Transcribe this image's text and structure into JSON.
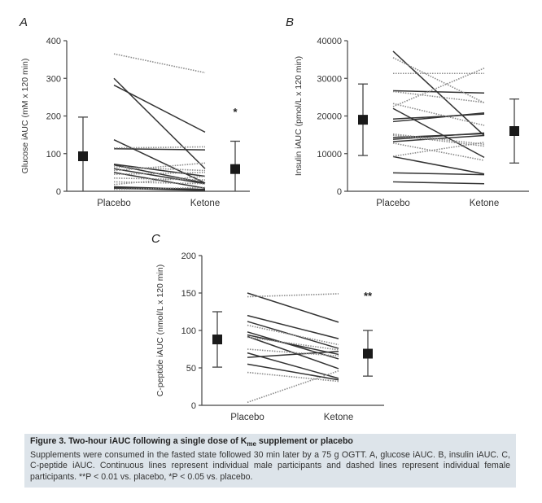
{
  "chart_data": [
    {
      "type": "line",
      "panel": "A",
      "ylabel": "Glucose iAUC (mM x 120 min)",
      "ylim": [
        0,
        400
      ],
      "yticks": [
        0,
        100,
        200,
        300,
        400
      ],
      "categories": [
        "Placebo",
        "Ketone"
      ],
      "significance": "*",
      "means": {
        "placebo": {
          "mean": 93,
          "sd_upper": 197
        },
        "ketone": {
          "mean": 59,
          "sd_upper": 133
        }
      },
      "series": [
        {
          "name": "male",
          "style": "solid",
          "values": [
            300,
            60
          ]
        },
        {
          "name": "male",
          "style": "solid",
          "values": [
            282,
            157
          ]
        },
        {
          "name": "male",
          "style": "solid",
          "values": [
            137,
            22
          ]
        },
        {
          "name": "male",
          "style": "solid",
          "values": [
            113,
            110
          ]
        },
        {
          "name": "male",
          "style": "solid",
          "values": [
            72,
            40
          ]
        },
        {
          "name": "male",
          "style": "solid",
          "values": [
            70,
            22
          ]
        },
        {
          "name": "male",
          "style": "solid",
          "values": [
            60,
            20
          ]
        },
        {
          "name": "male",
          "style": "solid",
          "values": [
            50,
            8
          ]
        },
        {
          "name": "male",
          "style": "solid",
          "values": [
            12,
            5
          ]
        },
        {
          "name": "male",
          "style": "solid",
          "values": [
            10,
            3
          ]
        },
        {
          "name": "male",
          "style": "solid",
          "values": [
            8,
            2
          ]
        },
        {
          "name": "female",
          "style": "dashed",
          "values": [
            365,
            315
          ]
        },
        {
          "name": "female",
          "style": "dashed",
          "values": [
            115,
            118
          ]
        },
        {
          "name": "female",
          "style": "dashed",
          "values": [
            65,
            55
          ]
        },
        {
          "name": "female",
          "style": "dashed",
          "values": [
            55,
            75
          ]
        },
        {
          "name": "female",
          "style": "dashed",
          "values": [
            45,
            50
          ]
        },
        {
          "name": "female",
          "style": "dashed",
          "values": [
            35,
            30
          ]
        },
        {
          "name": "female",
          "style": "dashed",
          "values": [
            25,
            20
          ]
        },
        {
          "name": "female",
          "style": "dashed",
          "values": [
            18,
            40
          ]
        },
        {
          "name": "female",
          "style": "dashed",
          "values": [
            5,
            10
          ]
        }
      ]
    },
    {
      "type": "line",
      "panel": "B",
      "ylabel": "Insulin iAUC (pmol/L x 120 min)",
      "ylim": [
        0,
        40000
      ],
      "yticks": [
        0,
        10000,
        20000,
        30000,
        40000
      ],
      "categories": [
        "Placebo",
        "Ketone"
      ],
      "significance": "",
      "means": {
        "placebo": {
          "mean": 19000,
          "sd_lower": 9500,
          "sd_upper": 28500
        },
        "ketone": {
          "mean": 16000,
          "sd_lower": 7500,
          "sd_upper": 24500
        }
      },
      "series": [
        {
          "name": "male",
          "style": "solid",
          "values": [
            37200,
            14800
          ]
        },
        {
          "name": "male",
          "style": "solid",
          "values": [
            26700,
            26100
          ]
        },
        {
          "name": "male",
          "style": "solid",
          "values": [
            22000,
            9000
          ]
        },
        {
          "name": "male",
          "style": "solid",
          "values": [
            19200,
            20500
          ]
        },
        {
          "name": "male",
          "style": "solid",
          "values": [
            18500,
            20800
          ]
        },
        {
          "name": "male",
          "style": "solid",
          "values": [
            14300,
            15300
          ]
        },
        {
          "name": "male",
          "style": "solid",
          "values": [
            13800,
            15500
          ]
        },
        {
          "name": "male",
          "style": "solid",
          "values": [
            13200,
            14800
          ]
        },
        {
          "name": "male",
          "style": "solid",
          "values": [
            9200,
            4600
          ]
        },
        {
          "name": "male",
          "style": "solid",
          "values": [
            4900,
            4400
          ]
        },
        {
          "name": "male",
          "style": "solid",
          "values": [
            2500,
            2000
          ]
        },
        {
          "name": "female",
          "style": "dashed",
          "values": [
            35500,
            23500
          ]
        },
        {
          "name": "female",
          "style": "dashed",
          "values": [
            31300,
            31300
          ]
        },
        {
          "name": "female",
          "style": "dashed",
          "values": [
            26500,
            23600
          ]
        },
        {
          "name": "female",
          "style": "dashed",
          "values": [
            22500,
            32700
          ]
        },
        {
          "name": "female",
          "style": "dashed",
          "values": [
            23300,
            17500
          ]
        },
        {
          "name": "female",
          "style": "dashed",
          "values": [
            15200,
            12500
          ]
        },
        {
          "name": "female",
          "style": "dashed",
          "values": [
            14900,
            12000
          ]
        },
        {
          "name": "female",
          "style": "dashed",
          "values": [
            12800,
            8200
          ]
        },
        {
          "name": "female",
          "style": "dashed",
          "values": [
            9300,
            13000
          ]
        }
      ]
    },
    {
      "type": "line",
      "panel": "C",
      "ylabel": "C-peptide iAUC (nmol/L x 120 min)",
      "ylim": [
        0,
        200
      ],
      "yticks": [
        0,
        50,
        100,
        150,
        200
      ],
      "categories": [
        "Placebo",
        "Ketone"
      ],
      "significance": "**",
      "means": {
        "placebo": {
          "mean": 88,
          "sd_lower": 51,
          "sd_upper": 125
        },
        "ketone": {
          "mean": 69,
          "sd_lower": 39,
          "sd_upper": 100
        }
      },
      "series": [
        {
          "name": "male",
          "style": "solid",
          "values": [
            150,
            111
          ]
        },
        {
          "name": "male",
          "style": "solid",
          "values": [
            120,
            89
          ]
        },
        {
          "name": "male",
          "style": "solid",
          "values": [
            112,
            76
          ]
        },
        {
          "name": "male",
          "style": "solid",
          "values": [
            98,
            62
          ]
        },
        {
          "name": "male",
          "style": "solid",
          "values": [
            94,
            68
          ]
        },
        {
          "name": "male",
          "style": "solid",
          "values": [
            92,
            49
          ]
        },
        {
          "name": "male",
          "style": "solid",
          "values": [
            70,
            36
          ]
        },
        {
          "name": "male",
          "style": "solid",
          "values": [
            64,
            72
          ]
        },
        {
          "name": "male",
          "style": "solid",
          "values": [
            55,
            34
          ]
        },
        {
          "name": "female",
          "style": "dashed",
          "values": [
            145,
            149
          ]
        },
        {
          "name": "female",
          "style": "dashed",
          "values": [
            107,
            81
          ]
        },
        {
          "name": "female",
          "style": "dashed",
          "values": [
            91,
            74
          ]
        },
        {
          "name": "female",
          "style": "dashed",
          "values": [
            75,
            66
          ]
        },
        {
          "name": "female",
          "style": "dashed",
          "values": [
            44,
            32
          ]
        },
        {
          "name": "female",
          "style": "dashed",
          "values": [
            4,
            46
          ]
        }
      ]
    }
  ],
  "panel_letters": [
    "A",
    "B",
    "C"
  ],
  "caption": {
    "title_prefix": "Figure 3.  Two-hour iAUC following a single dose of K",
    "title_sub": "me",
    "title_suffix": " supplement or placebo",
    "body": "Supplements were consumed in the fasted state followed 30 min later by a 75 g OGTT. A, glucose iAUC. B, insulin iAUC. C, C-peptide iAUC. Continuous lines represent individual male participants and dashed lines represent individual female participants. **P < 0.01 vs. placebo, *P < 0.05 vs. placebo."
  },
  "colors": {
    "line": "#333333",
    "dashed": "#8a8a8a",
    "axis": "#444444",
    "caption_bg": "#dde4ea"
  }
}
